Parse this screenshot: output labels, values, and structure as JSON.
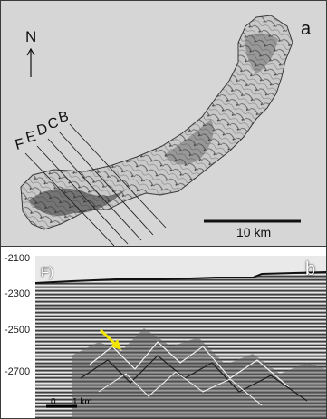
{
  "panel_a": {
    "letter": "a",
    "north": "N",
    "scale_bar": "10 km",
    "profile_lines": [
      "F",
      "E",
      "D",
      "C",
      "B"
    ]
  },
  "panel_b": {
    "letter": "b",
    "profile_label": "F)",
    "y_ticks": [
      "-2100",
      "-2300",
      "-2500",
      "-2700"
    ],
    "scale_bar_zero": "0",
    "scale_bar_label": "1 km",
    "colors": {
      "arrow": "#f2e500"
    }
  }
}
